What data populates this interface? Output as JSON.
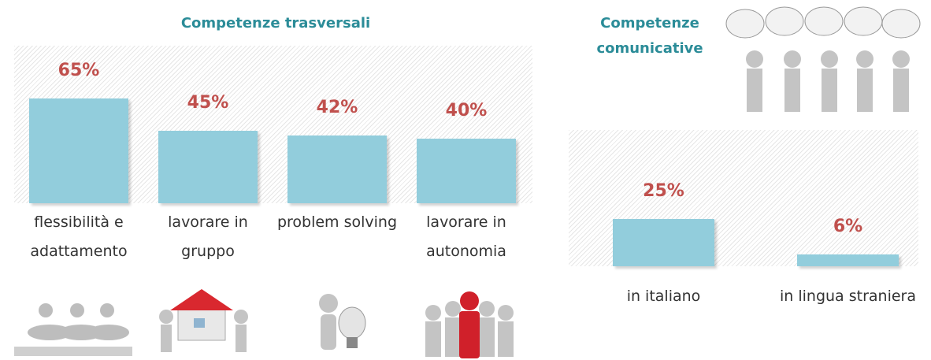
{
  "chart_data": [
    {
      "type": "bar",
      "title": "Competenze trasversali",
      "categories": [
        "flessibilità e adattamento",
        "lavorare in gruppo",
        "problem solving",
        "lavorare in autonomia"
      ],
      "values": [
        65,
        45,
        42,
        40
      ],
      "value_labels": [
        "65%",
        "45%",
        "42%",
        "40%"
      ],
      "color": "#92cddc"
    },
    {
      "type": "bar",
      "title": "Competenze comunicative",
      "categories": [
        "in italiano",
        "in lingua straniera"
      ],
      "values": [
        25,
        6
      ],
      "value_labels": [
        "25%",
        "6%"
      ],
      "color": "#92cddc"
    }
  ]
}
